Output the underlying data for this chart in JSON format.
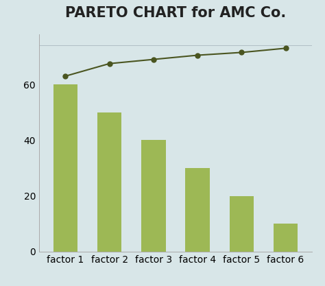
{
  "title": "PARETO CHART for AMC Co.",
  "categories": [
    "factor 1",
    "factor 2",
    "factor 3",
    "factor 4",
    "factor 5",
    "factor 6"
  ],
  "values": [
    60,
    50,
    40,
    30,
    20,
    10
  ],
  "cumulative": [
    63.0,
    67.5,
    69.0,
    70.5,
    71.5,
    73.0
  ],
  "bar_color": "#9db855",
  "line_color": "#4a5520",
  "dot_color": "#4a5520",
  "background_color": "#d8e6e8",
  "title_fontsize": 15,
  "title_fontweight": "bold",
  "ylim": [
    0,
    78
  ],
  "yticks": [
    0,
    20,
    40,
    60
  ],
  "tick_label_fontsize": 10,
  "line_width": 1.5,
  "marker_size": 5,
  "hline_y": 74,
  "bar_width": 0.55
}
